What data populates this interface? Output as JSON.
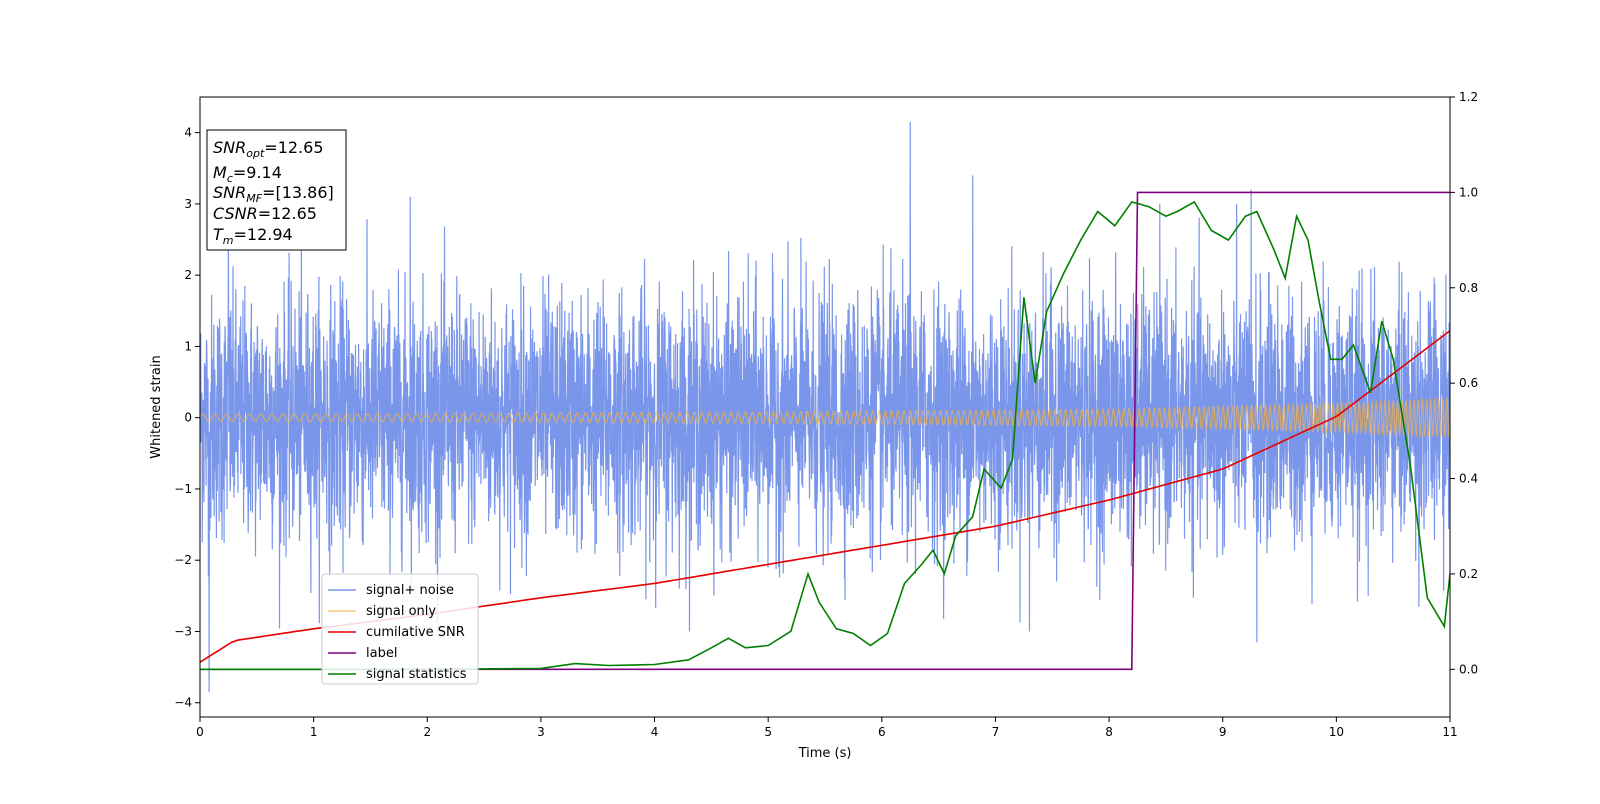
{
  "chart_data": {
    "type": "line",
    "xlabel": "Time (s)",
    "ylabel": "Whitened strain",
    "xlim": [
      0,
      11
    ],
    "ylim": [
      -4.2,
      4.5
    ],
    "y2lim": [
      -0.1,
      1.2
    ],
    "x_ticks": [
      "0",
      "1",
      "2",
      "3",
      "4",
      "5",
      "6",
      "7",
      "8",
      "9",
      "10",
      "11"
    ],
    "y_ticks": [
      "−4",
      "−3",
      "−2",
      "−1",
      "0",
      "1",
      "2",
      "3",
      "4"
    ],
    "y2_ticks": [
      "0.0",
      "0.2",
      "0.4",
      "0.6",
      "0.8",
      "1.0",
      "1.2"
    ],
    "grid": false,
    "legend_placement": "lower-left",
    "annotation": {
      "snr_opt": {
        "sym": "SNR",
        "sub": "opt",
        "val": "=12.65"
      },
      "mc": {
        "sym": "M",
        "sub": "c",
        "val": "=9.14"
      },
      "snr_mf": {
        "sym": "SNR",
        "sub": "MF",
        "val": "=[13.86]"
      },
      "csnr": {
        "sym": "CSNR",
        "sub": "",
        "val": "=12.65"
      },
      "tm": {
        "sym": "T",
        "sub": "m",
        "val": "=12.94"
      }
    },
    "series": [
      {
        "name": "signal+ noise",
        "axis": "left",
        "color": "#4169e1",
        "opacity": 0.7,
        "description": "white-noise-like strain, envelope roughly ±2 with peaks to about ±3; max spike 4.15 near t=6.25, min spike -3.85 near t=0.08",
        "envelope": [
          -2.3,
          2.3
        ],
        "spikes": [
          {
            "x": 0.08,
            "y": -3.85
          },
          {
            "x": 6.25,
            "y": 4.15
          },
          {
            "x": 6.8,
            "y": 3.4
          },
          {
            "x": 1.85,
            "y": 3.1
          },
          {
            "x": 9.25,
            "y": 3.2
          },
          {
            "x": 9.3,
            "y": -3.15
          },
          {
            "x": 7.3,
            "y": -3.0
          },
          {
            "x": 0.25,
            "y": 2.9
          }
        ]
      },
      {
        "name": "signal only",
        "axis": "left",
        "color": "#f5b041",
        "opacity": 0.7,
        "description": "chirp; amplitude grows from about 0.05 at t=0 to about 0.27 at t=11",
        "amplitude": [
          [
            0,
            0.05
          ],
          [
            5,
            0.08
          ],
          [
            8,
            0.12
          ],
          [
            10,
            0.2
          ],
          [
            11,
            0.27
          ]
        ]
      },
      {
        "name": "cumilative SNR",
        "axis": "right",
        "color": "#e60000",
        "points": [
          [
            0,
            0.015
          ],
          [
            0.3,
            0.06
          ],
          [
            1,
            0.085
          ],
          [
            2,
            0.115
          ],
          [
            3,
            0.15
          ],
          [
            4,
            0.18
          ],
          [
            5,
            0.22
          ],
          [
            6,
            0.26
          ],
          [
            7,
            0.3
          ],
          [
            8,
            0.355
          ],
          [
            9,
            0.42
          ],
          [
            10,
            0.53
          ],
          [
            11,
            0.71
          ]
        ]
      },
      {
        "name": "label",
        "axis": "right",
        "color": "#800080",
        "points": [
          [
            0,
            0.0
          ],
          [
            8.2,
            0.0
          ],
          [
            8.25,
            1.0
          ],
          [
            11,
            1.0
          ]
        ]
      },
      {
        "name": "signal statistics",
        "axis": "right",
        "color": "#008000",
        "points": [
          [
            0,
            0.0
          ],
          [
            1,
            0.0
          ],
          [
            2,
            0.0
          ],
          [
            3,
            0.002
          ],
          [
            3.3,
            0.012
          ],
          [
            3.6,
            0.008
          ],
          [
            4.0,
            0.01
          ],
          [
            4.3,
            0.02
          ],
          [
            4.5,
            0.045
          ],
          [
            4.65,
            0.065
          ],
          [
            4.8,
            0.045
          ],
          [
            5.0,
            0.05
          ],
          [
            5.2,
            0.08
          ],
          [
            5.35,
            0.2
          ],
          [
            5.45,
            0.14
          ],
          [
            5.6,
            0.085
          ],
          [
            5.75,
            0.075
          ],
          [
            5.9,
            0.05
          ],
          [
            6.05,
            0.075
          ],
          [
            6.2,
            0.18
          ],
          [
            6.35,
            0.22
          ],
          [
            6.45,
            0.25
          ],
          [
            6.55,
            0.2
          ],
          [
            6.65,
            0.28
          ],
          [
            6.8,
            0.32
          ],
          [
            6.9,
            0.42
          ],
          [
            7.05,
            0.38
          ],
          [
            7.15,
            0.44
          ],
          [
            7.25,
            0.78
          ],
          [
            7.35,
            0.6
          ],
          [
            7.45,
            0.75
          ],
          [
            7.6,
            0.83
          ],
          [
            7.75,
            0.9
          ],
          [
            7.9,
            0.96
          ],
          [
            8.05,
            0.93
          ],
          [
            8.2,
            0.98
          ],
          [
            8.35,
            0.97
          ],
          [
            8.5,
            0.95
          ],
          [
            8.6,
            0.96
          ],
          [
            8.75,
            0.98
          ],
          [
            8.9,
            0.92
          ],
          [
            9.05,
            0.9
          ],
          [
            9.2,
            0.95
          ],
          [
            9.3,
            0.96
          ],
          [
            9.45,
            0.88
          ],
          [
            9.55,
            0.82
          ],
          [
            9.65,
            0.95
          ],
          [
            9.75,
            0.9
          ],
          [
            9.85,
            0.77
          ],
          [
            9.95,
            0.65
          ],
          [
            10.05,
            0.65
          ],
          [
            10.15,
            0.68
          ],
          [
            10.3,
            0.58
          ],
          [
            10.4,
            0.73
          ],
          [
            10.5,
            0.65
          ],
          [
            10.65,
            0.43
          ],
          [
            10.8,
            0.15
          ],
          [
            10.95,
            0.09
          ],
          [
            11,
            0.2
          ]
        ]
      }
    ]
  }
}
